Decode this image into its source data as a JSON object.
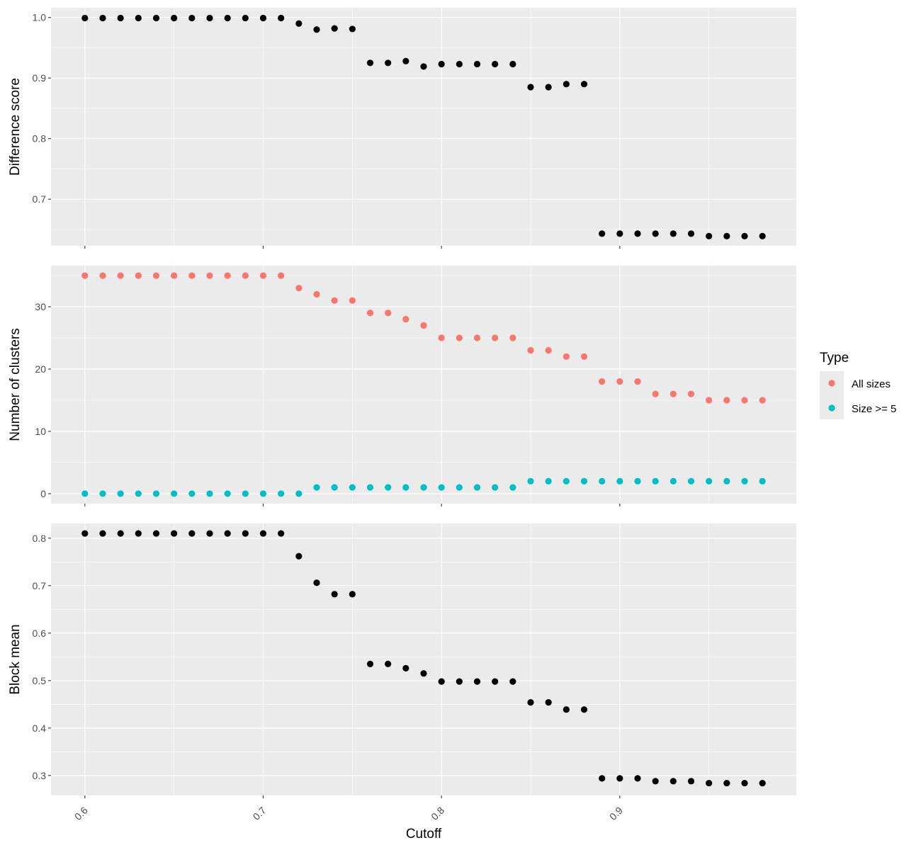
{
  "chart_data": [
    {
      "type": "scatter",
      "panel": "top",
      "ylabel": "Difference score",
      "xlabel": "",
      "xlim": [
        0.581,
        0.999
      ],
      "ylim": [
        0.623,
        1.016
      ],
      "yticks": [
        0.7,
        0.8,
        0.9,
        1.0
      ],
      "ytick_labels": [
        "0.7",
        "0.8",
        "0.9",
        "1.0"
      ],
      "grid": true,
      "color": "#000000",
      "x": [
        0.6,
        0.61,
        0.62,
        0.63,
        0.64,
        0.65,
        0.66,
        0.67,
        0.68,
        0.69,
        0.7,
        0.71,
        0.72,
        0.73,
        0.74,
        0.75,
        0.76,
        0.77,
        0.78,
        0.79,
        0.8,
        0.81,
        0.82,
        0.83,
        0.84,
        0.85,
        0.86,
        0.87,
        0.88,
        0.89,
        0.9,
        0.91,
        0.92,
        0.93,
        0.94,
        0.95,
        0.96,
        0.97,
        0.98
      ],
      "y": [
        0.999,
        0.999,
        0.999,
        0.999,
        0.999,
        0.999,
        0.999,
        0.999,
        0.999,
        0.999,
        0.999,
        0.999,
        0.99,
        0.98,
        0.982,
        0.981,
        0.925,
        0.925,
        0.928,
        0.919,
        0.923,
        0.923,
        0.923,
        0.923,
        0.923,
        0.885,
        0.885,
        0.89,
        0.89,
        0.643,
        0.643,
        0.643,
        0.643,
        0.643,
        0.643,
        0.639,
        0.639,
        0.639,
        0.639
      ]
    },
    {
      "type": "scatter",
      "panel": "middle",
      "ylabel": "Number of clusters",
      "xlabel": "",
      "xlim": [
        0.581,
        0.999
      ],
      "ylim": [
        -1.6,
        36.6
      ],
      "yticks": [
        0,
        10,
        20,
        30
      ],
      "ytick_labels": [
        "0",
        "10",
        "20",
        "30"
      ],
      "grid": true,
      "legend": {
        "title": "Type",
        "placement": "right",
        "entries": [
          "All sizes",
          "Size >= 5"
        ]
      },
      "x": [
        0.6,
        0.61,
        0.62,
        0.63,
        0.64,
        0.65,
        0.66,
        0.67,
        0.68,
        0.69,
        0.7,
        0.71,
        0.72,
        0.73,
        0.74,
        0.75,
        0.76,
        0.77,
        0.78,
        0.79,
        0.8,
        0.81,
        0.82,
        0.83,
        0.84,
        0.85,
        0.86,
        0.87,
        0.88,
        0.89,
        0.9,
        0.91,
        0.92,
        0.93,
        0.94,
        0.95,
        0.96,
        0.97,
        0.98
      ],
      "series": [
        {
          "name": "All sizes",
          "color": "#F8766D",
          "values": [
            35,
            35,
            35,
            35,
            35,
            35,
            35,
            35,
            35,
            35,
            35,
            35,
            33,
            32,
            31,
            31,
            29,
            29,
            28,
            27,
            25,
            25,
            25,
            25,
            25,
            23,
            23,
            22,
            22,
            18,
            18,
            18,
            16,
            16,
            16,
            15,
            15,
            15,
            15
          ]
        },
        {
          "name": "Size >= 5",
          "color": "#00BFC4",
          "values": [
            0,
            0,
            0,
            0,
            0,
            0,
            0,
            0,
            0,
            0,
            0,
            0,
            0,
            1,
            1,
            1,
            1,
            1,
            1,
            1,
            1,
            1,
            1,
            1,
            1,
            2,
            2,
            2,
            2,
            2,
            2,
            2,
            2,
            2,
            2,
            2,
            2,
            2,
            2
          ]
        }
      ]
    },
    {
      "type": "scatter",
      "panel": "bottom",
      "ylabel": "Block mean",
      "xlabel": "Cutoff",
      "xlim": [
        0.581,
        0.999
      ],
      "ylim": [
        0.258,
        0.831
      ],
      "yticks": [
        0.3,
        0.4,
        0.5,
        0.6,
        0.7,
        0.8
      ],
      "ytick_labels": [
        "0.3",
        "0.4",
        "0.5",
        "0.6",
        "0.7",
        "0.8"
      ],
      "xticks": [
        0.6,
        0.7,
        0.8,
        0.9
      ],
      "xtick_labels": [
        "0.6",
        "0.7",
        "0.8",
        "0.9"
      ],
      "grid": true,
      "color": "#000000",
      "x": [
        0.6,
        0.61,
        0.62,
        0.63,
        0.64,
        0.65,
        0.66,
        0.67,
        0.68,
        0.69,
        0.7,
        0.71,
        0.72,
        0.73,
        0.74,
        0.75,
        0.76,
        0.77,
        0.78,
        0.79,
        0.8,
        0.81,
        0.82,
        0.83,
        0.84,
        0.85,
        0.86,
        0.87,
        0.88,
        0.89,
        0.9,
        0.91,
        0.92,
        0.93,
        0.94,
        0.95,
        0.96,
        0.97,
        0.98
      ],
      "y": [
        0.81,
        0.81,
        0.81,
        0.81,
        0.81,
        0.81,
        0.81,
        0.81,
        0.81,
        0.81,
        0.81,
        0.81,
        0.762,
        0.706,
        0.682,
        0.682,
        0.535,
        0.535,
        0.526,
        0.515,
        0.498,
        0.498,
        0.498,
        0.498,
        0.498,
        0.454,
        0.454,
        0.439,
        0.439,
        0.294,
        0.294,
        0.294,
        0.288,
        0.288,
        0.288,
        0.284,
        0.284,
        0.284,
        0.284
      ]
    }
  ]
}
